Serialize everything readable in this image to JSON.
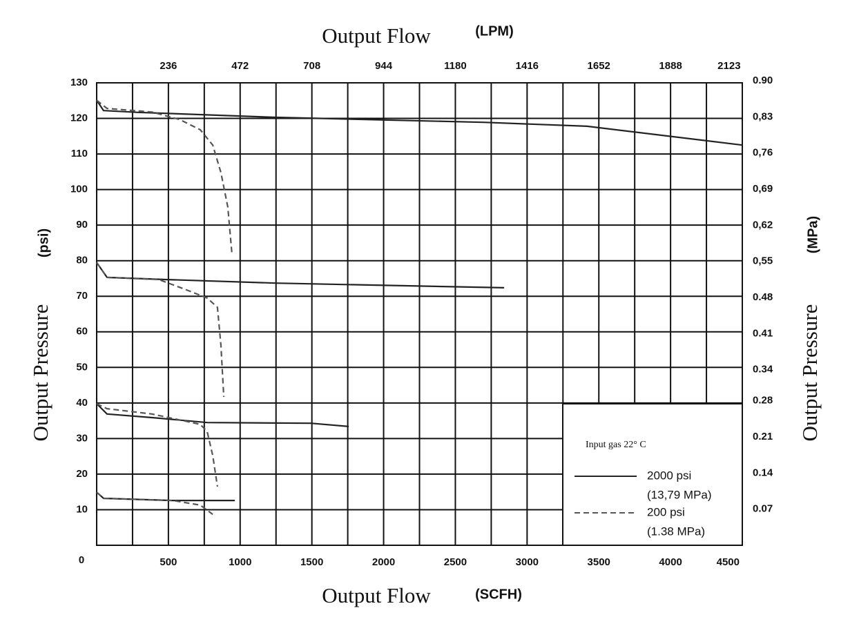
{
  "chart_data": {
    "type": "line",
    "x_label": "Output Flow",
    "x_unit": "(SCFH)",
    "x2_label": "Output Flow",
    "x2_unit": "(LPM)",
    "y_label": "Output Pressure",
    "y_unit": "(psi)",
    "y2_label": "Output Pressure",
    "y2_unit": "(MPa)",
    "xlim": [
      0,
      4500
    ],
    "xticks": [
      0,
      500,
      1000,
      1500,
      2000,
      2500,
      3000,
      3500,
      4000,
      4500
    ],
    "xgrid_minor": [
      250,
      750,
      1250,
      1750,
      2250,
      2750,
      3250,
      3750,
      4250
    ],
    "x2lim": [
      0,
      2124
    ],
    "x2ticks": [
      236,
      472,
      708,
      944,
      1180,
      1416,
      1652,
      1888,
      2123
    ],
    "ylim": [
      0,
      130
    ],
    "yticks": [
      10,
      20,
      30,
      40,
      50,
      60,
      70,
      80,
      90,
      100,
      110,
      120,
      130
    ],
    "y2lim": [
      0,
      0.896
    ],
    "y2ticks": [
      {
        "value": 0.07,
        "label": "0.07"
      },
      {
        "value": 0.14,
        "label": "0.14"
      },
      {
        "value": 0.21,
        "label": "0.21"
      },
      {
        "value": 0.28,
        "label": "0.28"
      },
      0.34,
      0.41,
      0.48,
      {
        "value": 0.55,
        "label": "0,55"
      },
      {
        "value": 0.62,
        "label": "0,62"
      },
      {
        "value": 0.69,
        "label": "0,69"
      },
      {
        "value": 0.76,
        "label": "0,76"
      },
      {
        "value": 0.83,
        "label": "0,83"
      },
      {
        "value": 0.9,
        "label": "0.90"
      }
    ],
    "grid": true,
    "legend": {
      "title": "Input gas 22° C",
      "position": "lower right",
      "notes": [
        "(13,79 MPa)",
        "(1.38 MPa)"
      ]
    },
    "series": [
      {
        "name": "2000 psi",
        "color": "#222222",
        "dash": "solid",
        "x": [
          0,
          48,
          289,
          1251,
          2695,
          3417,
          4500
        ],
        "values": [
          125.1,
          122.2,
          121.7,
          120.3,
          118.9,
          117.8,
          112.5
        ]
      },
      {
        "name": "200 psi",
        "color": "#555555",
        "dash": "dashed",
        "x": [
          0,
          72,
          385,
          578,
          722,
          809,
          866,
          914,
          943
        ],
        "values": [
          125.1,
          122.8,
          121.8,
          119.7,
          116.8,
          112.5,
          104.8,
          95.1,
          81.9
        ]
      },
      {
        "name": "2000 psi",
        "color": "#222222",
        "dash": "solid",
        "x": [
          0,
          72,
          481,
          1251,
          2840
        ],
        "values": [
          79.5,
          75.3,
          74.7,
          73.7,
          72.4
        ]
      },
      {
        "name": "200 psi",
        "color": "#555555",
        "dash": "dashed",
        "x": [
          0,
          72,
          433,
          626,
          770,
          842,
          866,
          886
        ],
        "values": [
          79.5,
          75.3,
          74.7,
          71.8,
          69.5,
          66.9,
          56.3,
          41.7
        ]
      },
      {
        "name": "2000 psi",
        "color": "#222222",
        "dash": "solid",
        "x": [
          0,
          72,
          385,
          770,
          1492,
          1757
        ],
        "values": [
          39.8,
          36.9,
          35.9,
          34.5,
          34.3,
          33.4
        ]
      },
      {
        "name": "200 psi",
        "color": "#555555",
        "dash": "dashed",
        "x": [
          0,
          72,
          385,
          722,
          770,
          809,
          842
        ],
        "values": [
          39.8,
          38.4,
          36.9,
          34.0,
          32.0,
          25.2,
          16.5
        ]
      },
      {
        "name": "2000 psi",
        "color": "#222222",
        "dash": "solid",
        "x": [
          0,
          48,
          529,
          963
        ],
        "values": [
          14.9,
          13.2,
          12.6,
          12.6
        ]
      },
      {
        "name": "200 psi",
        "color": "#555555",
        "dash": "dashed",
        "x": [
          0,
          48,
          529,
          722,
          809
        ],
        "values": [
          14.9,
          13.2,
          12.6,
          11.3,
          8.7
        ]
      }
    ]
  }
}
